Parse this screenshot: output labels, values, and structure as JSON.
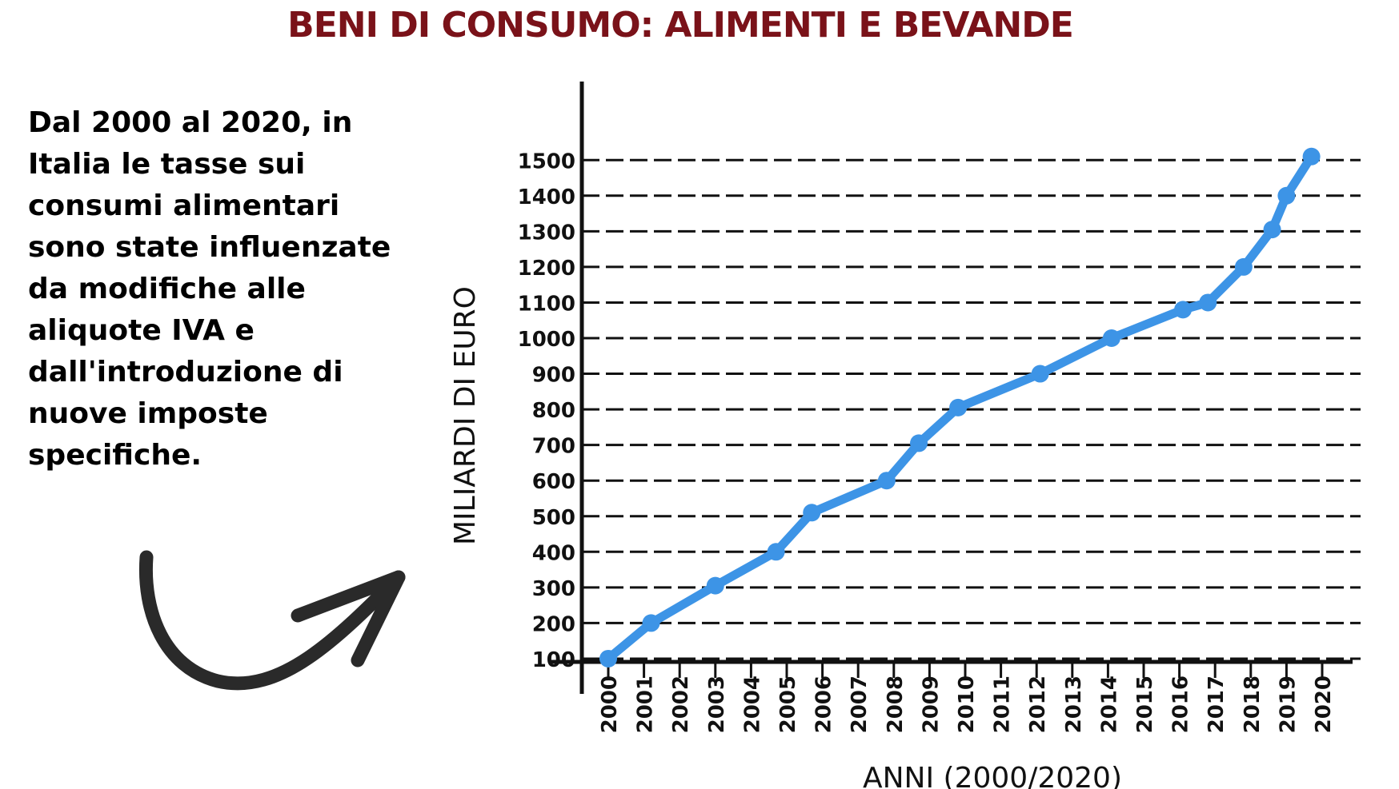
{
  "header": {
    "title": "BENI DI CONSUMO: ALIMENTI E BEVANDE"
  },
  "note": {
    "text": "Dal 2000 al 2020, in Italia le tasse sui consumi alimentari sono state influenzate da modifiche alle aliquote IVA e dall'introduzione di nuove imposte specifiche."
  },
  "colors": {
    "title": "#7a1219",
    "line": "#3d94e6",
    "axis": "#111111"
  },
  "icons": {
    "arrow": "curved-arrow-icon"
  },
  "chart_data": {
    "type": "line",
    "title": "",
    "xlabel": "ANNI (2000/2020)",
    "ylabel": "MILIARDI DI EURO",
    "categories": [
      "2000",
      "2001",
      "2002",
      "2003",
      "2004",
      "2005",
      "2006",
      "2007",
      "2008",
      "2009",
      "2010",
      "2011",
      "2012",
      "2013",
      "2014",
      "2015",
      "2016",
      "2017",
      "2018",
      "2019",
      "2020"
    ],
    "yticks": [
      100,
      200,
      300,
      400,
      500,
      600,
      700,
      800,
      900,
      1000,
      1100,
      1200,
      1300,
      1400,
      1500
    ],
    "ylim": [
      0,
      1600
    ],
    "grid": true,
    "series": [
      {
        "x": [
          2000,
          2001.2,
          2003,
          2004.7,
          2005.7,
          2007.8,
          2008.7,
          2009.8,
          2012.1,
          2014.1,
          2016.1,
          2016.8,
          2017.8,
          2018.6,
          2019.0,
          2019.7
        ],
        "y": [
          100,
          200,
          305,
          400,
          510,
          600,
          705,
          805,
          900,
          1000,
          1080,
          1100,
          1200,
          1305,
          1400,
          1510
        ]
      }
    ]
  }
}
